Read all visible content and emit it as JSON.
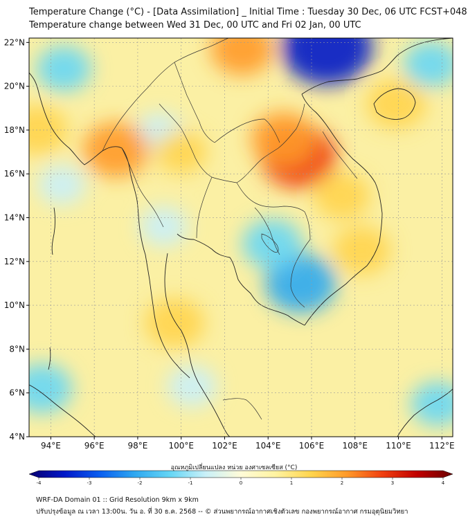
{
  "title": {
    "line1": "Temperature Change (°C) - [Data Assimilation] _ Initial Time : Tuesday 30 Dec, 06 UTC FCST+048",
    "line2": "Temperature change between Wed 31 Dec, 00 UTC and Fri 02 Jan, 00 UTC"
  },
  "map": {
    "lon_range": [
      93,
      112.5
    ],
    "lat_range": [
      4,
      22.2
    ],
    "lon_ticks": [
      "94°E",
      "96°E",
      "98°E",
      "100°E",
      "102°E",
      "104°E",
      "106°E",
      "108°E",
      "110°E",
      "112°E"
    ],
    "lat_ticks": [
      "4°N",
      "6°N",
      "8°N",
      "10°N",
      "12°N",
      "14°N",
      "16°N",
      "18°N",
      "20°N",
      "22°N"
    ],
    "background_color": "#fbf0a4",
    "warm_regions": [
      {
        "lon": 105.4,
        "lat": 16.8,
        "value": 2.6
      },
      {
        "lon": 97.0,
        "lat": 17.1,
        "value": 2.0
      },
      {
        "lon": 102.8,
        "lat": 21.7,
        "value": 1.8
      },
      {
        "lon": 109.9,
        "lat": 19.2,
        "value": 1.6
      },
      {
        "lon": 93.4,
        "lat": 18.0,
        "value": 1.6
      },
      {
        "lon": 99.7,
        "lat": 9.2,
        "value": 1.6
      },
      {
        "lon": 104.7,
        "lat": 17.6,
        "value": 1.9
      },
      {
        "lon": 107.4,
        "lat": 15.0,
        "value": 1.4
      },
      {
        "lon": 108.3,
        "lat": 12.5,
        "value": 1.5
      },
      {
        "lon": 100.0,
        "lat": 17.0,
        "value": 1.1
      }
    ],
    "cool_regions": [
      {
        "lon": 106.7,
        "lat": 21.8,
        "value": -3.5
      },
      {
        "lon": 105.5,
        "lat": 11.0,
        "value": -2.3
      },
      {
        "lon": 104.2,
        "lat": 12.8,
        "value": -1.6
      },
      {
        "lon": 93.6,
        "lat": 6.2,
        "value": -1.6
      },
      {
        "lon": 94.6,
        "lat": 20.8,
        "value": -1.3
      },
      {
        "lon": 111.5,
        "lat": 21.0,
        "value": -1.3
      },
      {
        "lon": 111.8,
        "lat": 5.5,
        "value": -1.2
      },
      {
        "lon": 99.0,
        "lat": 17.9,
        "value": -0.8
      },
      {
        "lon": 100.5,
        "lat": 6.3,
        "value": -1.0
      },
      {
        "lon": 94.5,
        "lat": 15.5,
        "value": -0.9
      },
      {
        "lon": 99.2,
        "lat": 13.6,
        "value": -0.9
      }
    ]
  },
  "colorbar": {
    "title": "อุณหภูมิเปลี่ยนแปลง หน่วย องศาเซลเซียส (°C)",
    "min": -4,
    "max": 4,
    "ticks": [
      "-4",
      "-3",
      "-2",
      "-1",
      "0",
      "1",
      "2",
      "3",
      "4"
    ],
    "colors": [
      "#080070",
      "#0018c8",
      "#0a5ef0",
      "#2fa8f0",
      "#66d6f5",
      "#c9f0f8",
      "#fffbd8",
      "#fff3a0",
      "#ffd44c",
      "#ff9a2a",
      "#f04010",
      "#c00000",
      "#6a0000"
    ]
  },
  "footer": {
    "line1": "WRF-DA Domain 01 :: Grid Resolution 9km x 9km",
    "line2": "ปรับปรุงข้อมูล ณ เวลา 13:00น. วัน อ. ที่ 30 ธ.ค. 2568 -- © ส่วนพยากรณ์อากาศเชิงตัวเลข กองพยากรณ์อากาศ กรมอุตุนิยมวิทยา"
  }
}
